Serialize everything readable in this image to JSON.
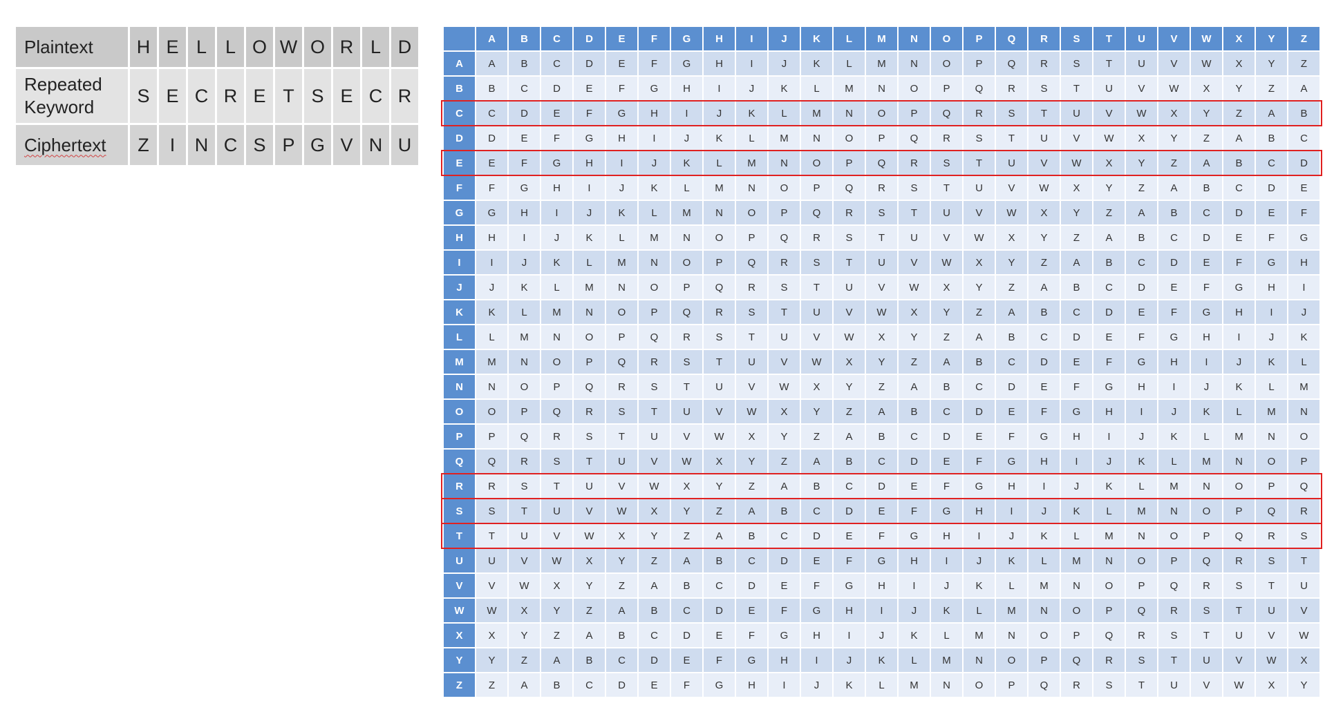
{
  "left_table": {
    "rows": [
      {
        "label": "Plaintext",
        "letters": [
          "H",
          "E",
          "L",
          "L",
          "O",
          "W",
          "O",
          "R",
          "L",
          "D"
        ]
      },
      {
        "label": "Repeated Keyword",
        "letters": [
          "S",
          "E",
          "C",
          "R",
          "E",
          "T",
          "S",
          "E",
          "C",
          "R"
        ]
      },
      {
        "label": "Ciphertext",
        "letters": [
          "Z",
          "I",
          "N",
          "C",
          "S",
          "P",
          "G",
          "V",
          "N",
          "U"
        ]
      }
    ]
  },
  "square": {
    "alphabet": [
      "A",
      "B",
      "C",
      "D",
      "E",
      "F",
      "G",
      "H",
      "I",
      "J",
      "K",
      "L",
      "M",
      "N",
      "O",
      "P",
      "Q",
      "R",
      "S",
      "T",
      "U",
      "V",
      "W",
      "X",
      "Y",
      "Z"
    ],
    "highlighted_rows": [
      "C",
      "E",
      "R",
      "S",
      "T"
    ],
    "header_color": "#5b8fd0",
    "highlight_color": "#e02020"
  }
}
